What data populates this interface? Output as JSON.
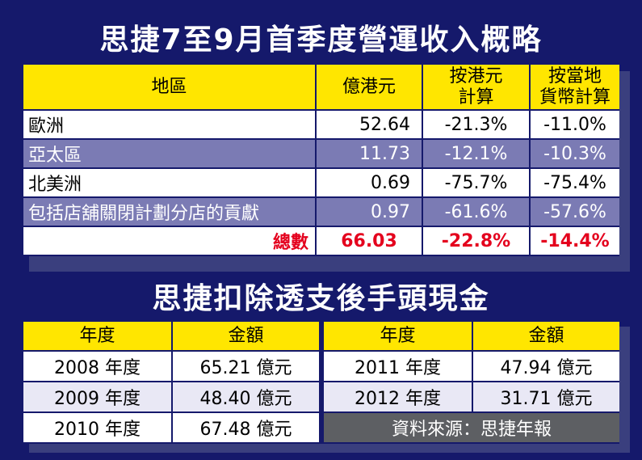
{
  "title1": "思捷7至9月首季度營運收入概略",
  "table1": {
    "headers": {
      "region": "地區",
      "hkd": "億港元",
      "by_hkd_1": "按港元",
      "by_hkd_2": "計算",
      "by_local_1": "按當地",
      "by_local_2": "貨幣計算"
    },
    "rows": [
      {
        "region": "歐洲",
        "hkd": "52.64",
        "by_hkd": "-21.3%",
        "by_local": "-11.0%"
      },
      {
        "region": "亞太區",
        "hkd": "11.73",
        "by_hkd": "-12.1%",
        "by_local": "-10.3%"
      },
      {
        "region": "北美洲",
        "hkd": "0.69",
        "by_hkd": "-75.7%",
        "by_local": "-75.4%"
      },
      {
        "region": "包括店舖關閉計劃分店的貢獻",
        "hkd": "0.97",
        "by_hkd": "-61.6%",
        "by_local": "-57.6%"
      }
    ],
    "total": {
      "label": "總數",
      "hkd": "66.03",
      "by_hkd": "-22.8%",
      "by_local": "-14.4%"
    }
  },
  "title2": "思捷扣除透支後手頭現金",
  "table2": {
    "headers": {
      "year": "年度",
      "amount": "金額"
    },
    "left": [
      {
        "year": "2008 年度",
        "amount": "65.21 億元"
      },
      {
        "year": "2009 年度",
        "amount": "48.40 億元"
      },
      {
        "year": "2010 年度",
        "amount": "67.48 億元"
      }
    ],
    "right": [
      {
        "year": "2011 年度",
        "amount": "47.94 億元"
      },
      {
        "year": "2012 年度",
        "amount": "31.71 億元"
      }
    ],
    "source": "資料來源：思捷年報"
  },
  "colors": {
    "background": "#15196b",
    "header_yellow": "#ffe600",
    "row_purple": "#7b7bb4",
    "total_red": "#e4001d",
    "source_gray": "#5d5f63"
  }
}
